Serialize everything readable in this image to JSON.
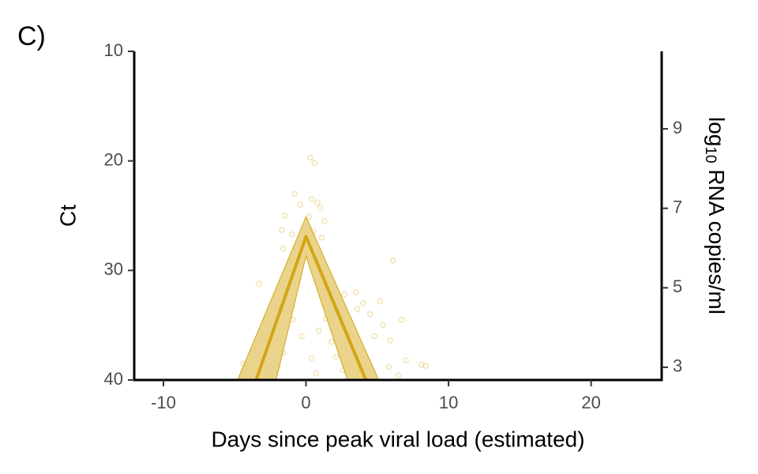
{
  "chart_data": {
    "type": "line",
    "panel_label": "C)",
    "xlabel": "Days since peak viral load (estimated)",
    "ylabel": "Ct",
    "y2label": {
      "base": "log",
      "subscript": "10",
      "rest": " RNA copies/ml"
    },
    "xlim": [
      -12.05,
      24.95
    ],
    "xticks": [
      -10,
      0,
      10,
      20
    ],
    "ylim": [
      10,
      40
    ],
    "y_inverted": true,
    "yticks": [
      10,
      20,
      30,
      40
    ],
    "y2lim": [
      2.68,
      10.95
    ],
    "y2ticks": [
      3,
      5,
      7,
      9
    ],
    "series": [
      {
        "type": "scatter",
        "color": "#d4a614",
        "opacity": 0.25,
        "x": [
          0.3,
          0.6,
          -0.8,
          0.4,
          0.8,
          1,
          -0.4,
          0.2,
          1.3,
          -1.5,
          -1.7,
          -1,
          0.5,
          1.1,
          -1.6,
          -0.2,
          0.9,
          6.1,
          -1,
          1.6,
          -3.3,
          -0.6,
          2.7,
          1.3,
          3.5,
          4,
          5.2,
          -2,
          2.2,
          3.6,
          -0.9,
          1.4,
          4.5,
          5.4,
          6.7,
          -2.8,
          0.9,
          2.5,
          3.2,
          4.8,
          -3,
          -0.3,
          1.8,
          5.9,
          -3.7,
          -1.6,
          0.4,
          2.1,
          3,
          4.2,
          5.8,
          7,
          8.1,
          8.4,
          -4.4,
          -2,
          0.7,
          2.6,
          3.6,
          -2.5,
          6.5
        ],
        "values": [
          19.7,
          20.2,
          23,
          23.5,
          23.8,
          24.3,
          24,
          25.1,
          25.5,
          25,
          26.3,
          26.7,
          26.4,
          27,
          28,
          28.5,
          28.8,
          29.1,
          30,
          30.5,
          31.2,
          31,
          32.2,
          32.5,
          32,
          33,
          32.8,
          33.5,
          33.6,
          33.5,
          34.5,
          34.4,
          34,
          35,
          34.5,
          34.5,
          35.5,
          35,
          35.8,
          36,
          36.2,
          36,
          36.5,
          36.4,
          37.3,
          37.5,
          38,
          37.9,
          38.5,
          38.9,
          38.8,
          38.2,
          38.6,
          38.7,
          38.5,
          38.8,
          39.4,
          39.1,
          39,
          39.6,
          39.6
        ]
      },
      {
        "type": "area",
        "color": "#e6cc78",
        "stroke": "#d1a515",
        "x": [
          -4.8,
          0,
          5.1,
          2.9,
          0,
          -2.1
        ],
        "values": [
          40,
          25.1,
          40,
          40,
          28.7,
          40
        ]
      },
      {
        "type": "line",
        "color": "#d1a515",
        "x": [
          -3.5,
          0,
          4.2
        ],
        "values": [
          40,
          26.9,
          40
        ]
      }
    ]
  }
}
